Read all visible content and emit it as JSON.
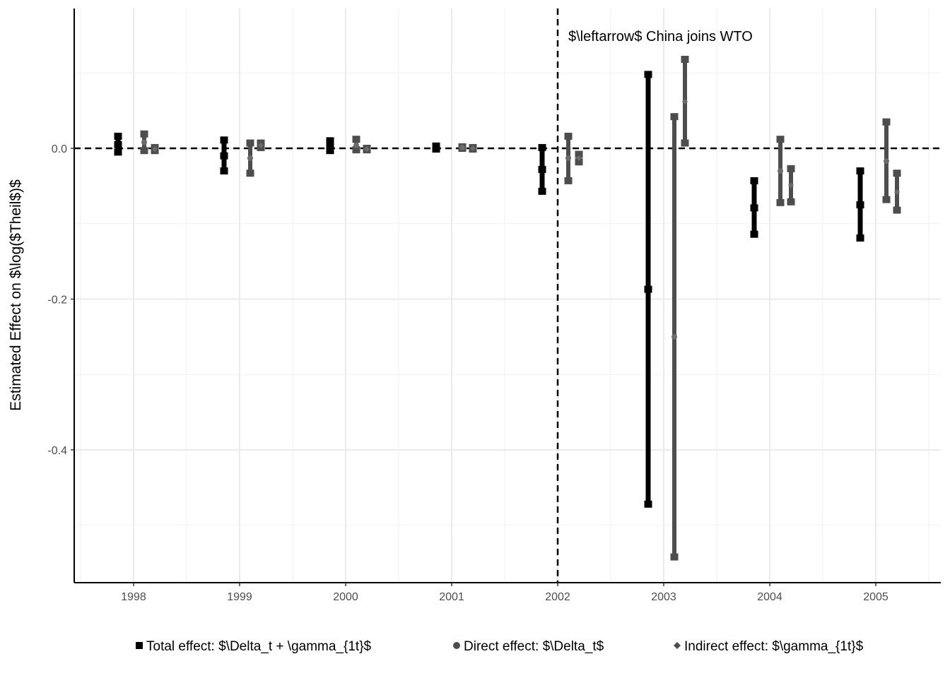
{
  "chart_data": {
    "type": "errorbar",
    "title": "",
    "xlabel": "",
    "ylabel": "Estimated Effect on $\\log($Theil$)$",
    "categories": [
      "1998",
      "1999",
      "2000",
      "2001",
      "2002",
      "2003",
      "2004",
      "2005"
    ],
    "ylim": [
      -0.575,
      0.185
    ],
    "yticks": [
      0.0,
      -0.2,
      -0.4
    ],
    "ytick_labels": [
      "0.0",
      "-0.2",
      "-0.4"
    ],
    "grid": true,
    "reference_lines": {
      "horizontal": 0.0,
      "vertical_category": "2002"
    },
    "annotation": "$\\leftarrow$ China joins WTO",
    "legend_position": "bottom",
    "series": [
      {
        "name": "Total effect: $\\Delta_t + \\gamma_{1t}$",
        "marker": "square",
        "color": "#000000",
        "points": [
          {
            "year": "1998",
            "estimate": 0.005,
            "low": -0.005,
            "high": 0.016
          },
          {
            "year": "1999",
            "estimate": -0.01,
            "low": -0.03,
            "high": 0.011
          },
          {
            "year": "2000",
            "estimate": 0.003,
            "low": -0.003,
            "high": 0.01
          },
          {
            "year": "2001",
            "estimate": 0.001,
            "low": -0.001,
            "high": 0.003
          },
          {
            "year": "2002",
            "estimate": -0.028,
            "low": -0.057,
            "high": 0.001
          },
          {
            "year": "2003",
            "estimate": -0.187,
            "low": -0.472,
            "high": 0.098
          },
          {
            "year": "2004",
            "estimate": -0.079,
            "low": -0.114,
            "high": -0.043
          },
          {
            "year": "2005",
            "estimate": -0.075,
            "low": -0.119,
            "high": -0.03
          }
        ]
      },
      {
        "name": "Direct effect: $\\Delta_t$",
        "marker": "circle",
        "color": "#4d4d4d",
        "points": [
          {
            "year": "1998",
            "estimate": 0.008,
            "low": -0.003,
            "high": 0.019
          },
          {
            "year": "1999",
            "estimate": -0.013,
            "low": -0.033,
            "high": 0.007
          },
          {
            "year": "2000",
            "estimate": 0.004,
            "low": -0.002,
            "high": 0.012
          },
          {
            "year": "2001",
            "estimate": 0.001,
            "low": 0.0,
            "high": 0.002
          },
          {
            "year": "2002",
            "estimate": -0.013,
            "low": -0.043,
            "high": 0.016
          },
          {
            "year": "2003",
            "estimate": -0.25,
            "low": -0.542,
            "high": 0.042
          },
          {
            "year": "2004",
            "estimate": -0.03,
            "low": -0.072,
            "high": 0.012
          },
          {
            "year": "2005",
            "estimate": -0.017,
            "low": -0.068,
            "high": 0.035
          }
        ]
      },
      {
        "name": "Indirect effect: $\\gamma_{1t}$",
        "marker": "diamond",
        "color": "#4d4d4d",
        "points": [
          {
            "year": "1998",
            "estimate": -0.001,
            "low": -0.003,
            "high": 0.001
          },
          {
            "year": "1999",
            "estimate": 0.004,
            "low": 0.001,
            "high": 0.007
          },
          {
            "year": "2000",
            "estimate": -0.001,
            "low": -0.002,
            "high": 0.0
          },
          {
            "year": "2001",
            "estimate": 0.0,
            "low": -0.001,
            "high": 0.001
          },
          {
            "year": "2002",
            "estimate": -0.013,
            "low": -0.018,
            "high": -0.008
          },
          {
            "year": "2003",
            "estimate": 0.062,
            "low": 0.007,
            "high": 0.118
          },
          {
            "year": "2004",
            "estimate": -0.049,
            "low": -0.071,
            "high": -0.027
          },
          {
            "year": "2005",
            "estimate": -0.058,
            "low": -0.082,
            "high": -0.033
          }
        ]
      }
    ]
  }
}
